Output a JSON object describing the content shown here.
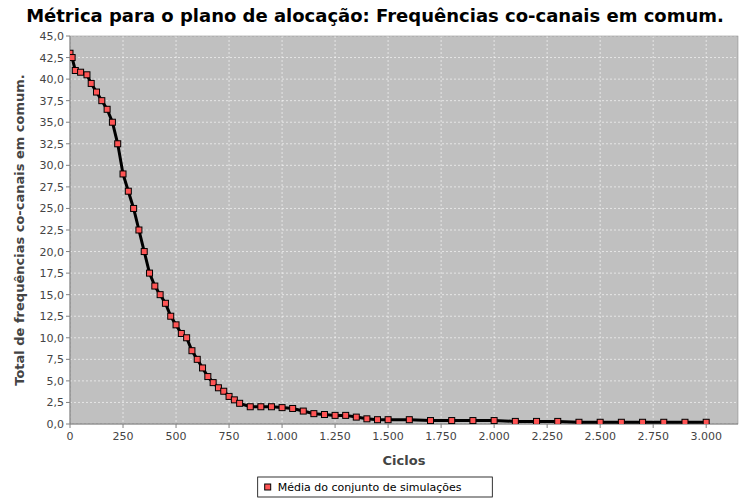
{
  "chart_data": {
    "type": "line",
    "title": "Métrica para o plano de alocação: Frequências co-canais em comum.",
    "x_label": "Ciclos",
    "y_label": "Total de frequências co-canais em comum.",
    "x": [
      0,
      10,
      25,
      50,
      80,
      100,
      125,
      150,
      175,
      200,
      225,
      250,
      275,
      300,
      325,
      350,
      375,
      400,
      425,
      450,
      475,
      500,
      525,
      550,
      575,
      600,
      625,
      650,
      675,
      700,
      725,
      750,
      775,
      800,
      850,
      900,
      950,
      1000,
      1050,
      1100,
      1150,
      1200,
      1250,
      1300,
      1350,
      1400,
      1450,
      1500,
      1600,
      1700,
      1800,
      1900,
      2000,
      2100,
      2200,
      2300,
      2400,
      2500,
      2600,
      2700,
      2800,
      2900,
      3000
    ],
    "series": [
      {
        "name": "Média do conjunto de simulações",
        "color": "#ff5555",
        "marker": "square",
        "values": [
          43,
          42.5,
          41,
          40.8,
          40.5,
          39.5,
          38.5,
          37.5,
          36.5,
          35,
          32.5,
          29,
          27,
          25,
          22.5,
          20,
          17.5,
          16,
          15,
          14,
          12.5,
          11.5,
          10.5,
          10,
          8.5,
          7.5,
          6.5,
          5.5,
          4.8,
          4.2,
          3.8,
          3.2,
          2.8,
          2.4,
          2,
          2,
          2,
          1.9,
          1.8,
          1.5,
          1.2,
          1.1,
          1,
          1,
          0.8,
          0.6,
          0.5,
          0.5,
          0.5,
          0.4,
          0.4,
          0.4,
          0.4,
          0.3,
          0.3,
          0.3,
          0.2,
          0.2,
          0.2,
          0.2,
          0.2,
          0.2,
          0.2
        ]
      }
    ],
    "xlim": [
      0,
      3150
    ],
    "ylim": [
      0,
      45
    ],
    "xticks": [
      0,
      250,
      500,
      750,
      {
        "value": 1000,
        "label": "1.000"
      },
      {
        "value": 1250,
        "label": "1.250"
      },
      {
        "value": 1500,
        "label": "1.500"
      },
      {
        "value": 1750,
        "label": "1.750"
      },
      {
        "value": 2000,
        "label": "2.000"
      },
      {
        "value": 2250,
        "label": "2.250"
      },
      {
        "value": 2500,
        "label": "2.500"
      },
      {
        "value": 2750,
        "label": "2.750"
      },
      {
        "value": 3000,
        "label": "3.000"
      }
    ],
    "yticks": [
      {
        "value": 0,
        "label": "0,0"
      },
      {
        "value": 2.5,
        "label": "2,5"
      },
      {
        "value": 5,
        "label": "5,0"
      },
      {
        "value": 7.5,
        "label": "7,5"
      },
      {
        "value": 10,
        "label": "10,0"
      },
      {
        "value": 12.5,
        "label": "12,5"
      },
      {
        "value": 15,
        "label": "15,0"
      },
      {
        "value": 17.5,
        "label": "17,5"
      },
      {
        "value": 20,
        "label": "20,0"
      },
      {
        "value": 22.5,
        "label": "22,5"
      },
      {
        "value": 25,
        "label": "25,0"
      },
      {
        "value": 27.5,
        "label": "27,5"
      },
      {
        "value": 30,
        "label": "30,0"
      },
      {
        "value": 32.5,
        "label": "32,5"
      },
      {
        "value": 35,
        "label": "35,0"
      },
      {
        "value": 37.5,
        "label": "37,5"
      },
      {
        "value": 40,
        "label": "40,0"
      },
      {
        "value": 42.5,
        "label": "42,5"
      },
      {
        "value": 45,
        "label": "45,0"
      }
    ],
    "grid": true,
    "legend": "bottom"
  }
}
